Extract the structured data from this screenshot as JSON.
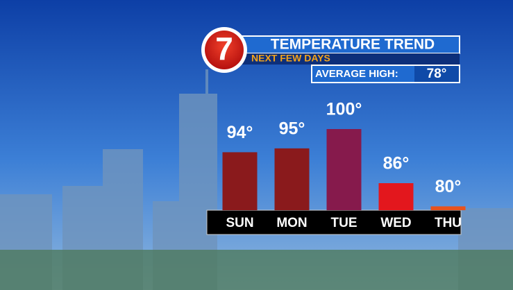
{
  "chart_data": {
    "type": "bar",
    "logo": "7",
    "title": "TEMPERATURE TREND",
    "subtitle": "NEXT FEW DAYS",
    "average_high_label": "AVERAGE HIGH:",
    "average_high": "78°",
    "categories": [
      "SUN",
      "MON",
      "TUE",
      "WED",
      "THU"
    ],
    "values": [
      94,
      95,
      100,
      86,
      80
    ],
    "value_labels": [
      "94°",
      "95°",
      "100°",
      "86°",
      "80°"
    ],
    "colors": [
      "#8a1a1c",
      "#8a1a1c",
      "#861a4c",
      "#e3171d",
      "#e8521c"
    ],
    "ylim": [
      79,
      100
    ]
  }
}
